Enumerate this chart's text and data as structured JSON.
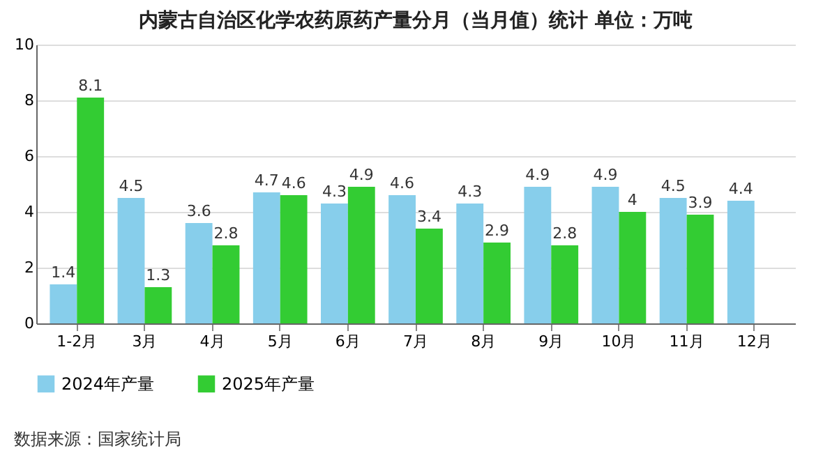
{
  "chart_data": {
    "type": "bar",
    "title": "内蒙古自治区化学农药原药产量分月（当月值）统计  单位：万吨",
    "categories": [
      "1-2月",
      "3月",
      "4月",
      "5月",
      "6月",
      "7月",
      "8月",
      "9月",
      "10月",
      "11月",
      "12月"
    ],
    "series": [
      {
        "name": "2024年产量",
        "color": "#87ceeb",
        "values": [
          1.4,
          4.5,
          3.6,
          4.7,
          4.3,
          4.6,
          4.3,
          4.9,
          4.9,
          4.5,
          4.4
        ]
      },
      {
        "name": "2025年产量",
        "color": "#33cc33",
        "values": [
          8.1,
          1.3,
          2.8,
          4.6,
          4.9,
          3.4,
          2.9,
          2.8,
          4,
          3.9,
          null
        ]
      }
    ],
    "ylim": [
      0,
      10
    ],
    "yticks": [
      0,
      2,
      4,
      6,
      8,
      10
    ],
    "grid": "y",
    "legend": "bottom",
    "data_labels": true,
    "annotations": [
      "数据来源：国家统计局"
    ]
  }
}
